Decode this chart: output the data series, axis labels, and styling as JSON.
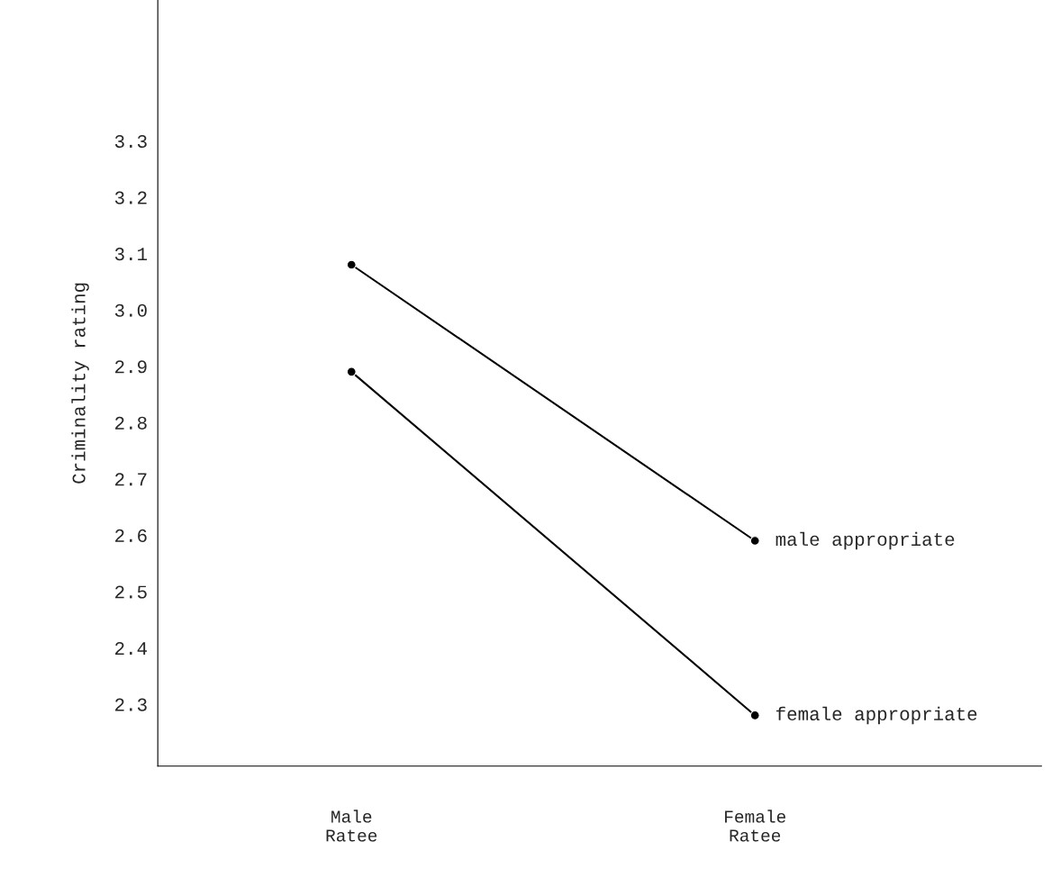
{
  "chart_data": {
    "type": "line",
    "ylabel": "Criminality rating",
    "categories": [
      "Male\nRatee",
      "Female\nRatee"
    ],
    "series": [
      {
        "name": "male appropriate",
        "color": "#000000",
        "values": [
          3.08,
          2.59
        ]
      },
      {
        "name": "female appropriate",
        "color": "#000000",
        "values": [
          2.89,
          2.28
        ]
      }
    ],
    "ylim": [
      2.19,
      3.55
    ],
    "yticks": [
      2.3,
      2.4,
      2.5,
      2.6,
      2.7,
      2.8,
      2.9,
      {
        "value": 3.0,
        "label": "3.0"
      },
      3.1,
      3.2,
      3.3
    ],
    "marker": "circle",
    "line_style": "solid",
    "grid": false,
    "legend": false
  }
}
